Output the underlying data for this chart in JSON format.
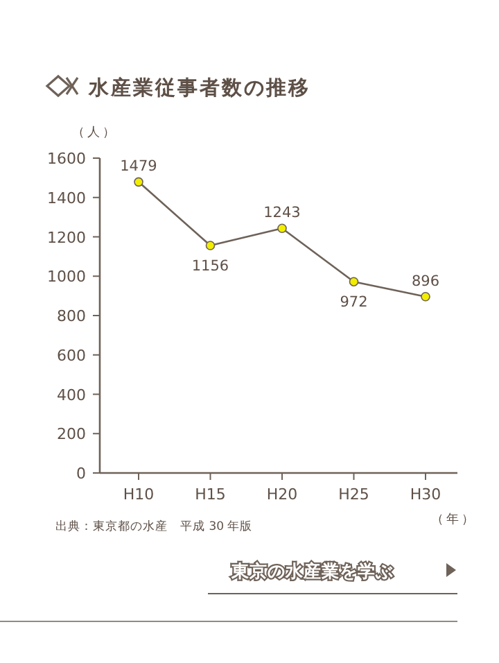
{
  "chart_data": {
    "type": "line",
    "title": "水産業従事者数の推移",
    "ylabel": "（人）",
    "xlabel": "（年）",
    "categories": [
      "H10",
      "H15",
      "H20",
      "H25",
      "H30"
    ],
    "series": [
      {
        "color": "#6e6259",
        "values": [
          1479,
          1156,
          1243,
          972,
          896
        ]
      }
    ],
    "ylim": [
      0,
      1600
    ],
    "yticks": [
      0,
      200,
      400,
      600,
      800,
      1000,
      1200,
      1400,
      1600
    ],
    "marker": "circle",
    "data_labels": true,
    "grid": false,
    "annotations": [
      "出典：東京都の水産　平成 30 年版",
      "東京の水産業を学ぶ"
    ]
  }
}
